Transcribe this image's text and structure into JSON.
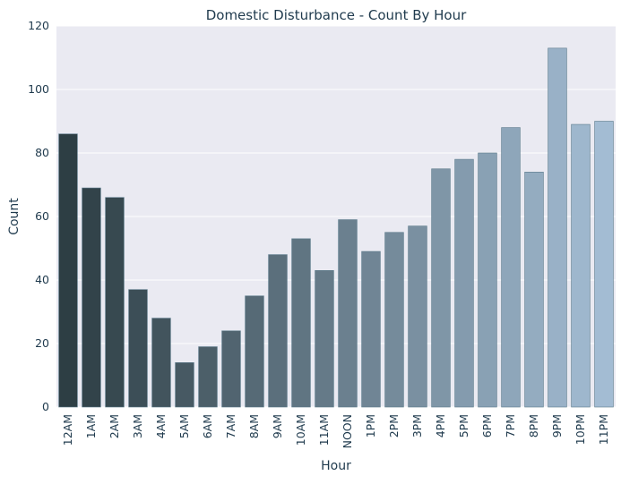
{
  "chart_data": {
    "type": "bar",
    "title": "Domestic Disturbance - Count By Hour",
    "xlabel": "Hour",
    "ylabel": "Count",
    "ylim": [
      0,
      120
    ],
    "yticks": [
      0,
      20,
      40,
      60,
      80,
      100,
      120
    ],
    "grid": true,
    "background": "#eaeaf2",
    "color_start": "#2d3e44",
    "color_end": "#a3bcd3",
    "categories": [
      "12AM",
      "1AM",
      "2AM",
      "3AM",
      "4AM",
      "5AM",
      "6AM",
      "7AM",
      "8AM",
      "9AM",
      "10AM",
      "11AM",
      "NOON",
      "1PM",
      "2PM",
      "3PM",
      "4PM",
      "5PM",
      "6PM",
      "7PM",
      "8PM",
      "9PM",
      "10PM",
      "11PM"
    ],
    "values": [
      86,
      69,
      66,
      37,
      28,
      14,
      19,
      24,
      35,
      48,
      53,
      43,
      59,
      49,
      55,
      57,
      75,
      78,
      80,
      88,
      74,
      113,
      89,
      90
    ]
  }
}
